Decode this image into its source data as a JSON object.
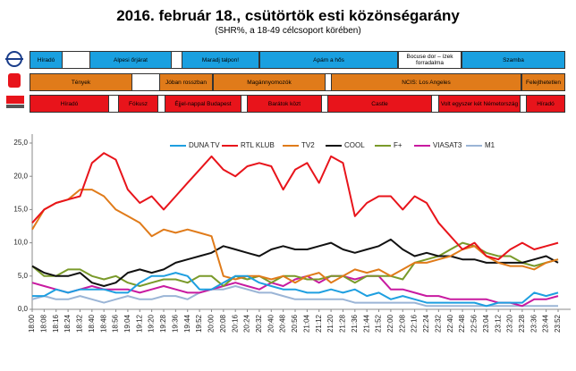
{
  "chart_data": {
    "type": "line",
    "title": "2016. február 18., csütörtök esti közönségarány",
    "subtitle": "(SHR%, a 18-49 célcsoport körében)",
    "categories": [
      "18:00",
      "18:08",
      "18:16",
      "18:24",
      "18:32",
      "18:40",
      "18:48",
      "18:56",
      "19:04",
      "19:12",
      "19:20",
      "19:28",
      "19:36",
      "19:44",
      "19:52",
      "20:00",
      "20:08",
      "20:16",
      "20:24",
      "20:32",
      "20:40",
      "20:48",
      "20:56",
      "21:04",
      "21:12",
      "21:20",
      "21:28",
      "21:36",
      "21:44",
      "21:52",
      "22:00",
      "22:08",
      "22:16",
      "22:24",
      "22:32",
      "22:40",
      "22:48",
      "22:56",
      "23:04",
      "23:12",
      "23:20",
      "23:28",
      "23:36",
      "23:44",
      "23:52"
    ],
    "ylim": [
      0,
      25
    ],
    "yticks": [
      {
        "value": 0,
        "label": "0,0"
      },
      {
        "value": 5,
        "label": "5,0"
      },
      {
        "value": 10,
        "label": "10,0"
      },
      {
        "value": 15,
        "label": "15,0"
      },
      {
        "value": 20,
        "label": "20,0"
      },
      {
        "value": 25,
        "label": "25,0"
      }
    ],
    "grid": false,
    "legend": "top",
    "series": [
      {
        "name": "DUNA TV",
        "color": "#1e9fe0",
        "values": [
          2,
          2,
          3,
          2.5,
          3,
          3,
          3,
          2.5,
          2.5,
          4,
          5,
          5,
          5.5,
          5,
          3,
          3,
          4,
          5,
          5,
          4,
          3.5,
          3,
          3,
          2.5,
          2.5,
          3,
          2.5,
          3,
          2,
          2.5,
          1.5,
          2,
          1.5,
          1,
          1,
          1,
          1,
          1,
          0.5,
          1,
          1,
          1,
          2.5,
          2,
          2.5
        ]
      },
      {
        "name": "RTL KLUB",
        "color": "#e8141b",
        "values": [
          13,
          15,
          16,
          16.5,
          17,
          22,
          23.5,
          22.5,
          18,
          16,
          17,
          15,
          17,
          19,
          21,
          23,
          21,
          20,
          21.5,
          22,
          21.5,
          18,
          21,
          22,
          19,
          23,
          22,
          14,
          16,
          17,
          17,
          15,
          17,
          16,
          13,
          11,
          9,
          10,
          8,
          7.5,
          9,
          10,
          9,
          9.5,
          10
        ]
      },
      {
        "name": "TV2",
        "color": "#e07b1a",
        "values": [
          12,
          15,
          16,
          16.5,
          18,
          18,
          17,
          15,
          14,
          13,
          11,
          12,
          11.5,
          12,
          11.5,
          11,
          5,
          4.5,
          5,
          5,
          4.5,
          5,
          4,
          5,
          5.5,
          4,
          5,
          6,
          5.5,
          6,
          5,
          6,
          7,
          7,
          7.5,
          8,
          9,
          9.5,
          8,
          7,
          6.5,
          6.5,
          6,
          7,
          7.5
        ]
      },
      {
        "name": "COOL",
        "color": "#111111",
        "values": [
          6.5,
          5.5,
          5,
          5,
          5.5,
          4,
          3.5,
          4,
          5.5,
          6,
          5.5,
          6,
          7,
          7.5,
          8,
          8.5,
          9.5,
          9,
          8.5,
          8,
          9,
          9.5,
          9,
          9,
          9.5,
          10,
          9,
          8.5,
          9,
          9.5,
          10.5,
          9,
          8,
          8.5,
          8,
          8,
          7.5,
          7.5,
          7,
          7,
          7,
          7,
          7.5,
          8,
          7
        ]
      },
      {
        "name": "F+",
        "color": "#7a9a2a",
        "values": [
          6.5,
          5,
          5,
          6,
          6,
          5,
          4.5,
          5,
          4,
          3.5,
          4,
          4.5,
          4.5,
          4,
          5,
          5,
          3.5,
          5,
          4.5,
          5,
          4,
          5,
          5,
          4.5,
          4.5,
          5,
          5,
          4,
          5,
          5,
          5,
          4.5,
          7,
          7.5,
          8,
          9,
          10,
          9.5,
          8.5,
          8,
          8,
          7,
          6.5,
          7,
          7.5
        ]
      },
      {
        "name": "VIASAT3",
        "color": "#c81aa0",
        "values": [
          4,
          3.5,
          3,
          2.5,
          3,
          3.5,
          3,
          3,
          3,
          2.5,
          3,
          3.5,
          3,
          2.5,
          2.5,
          3,
          3.5,
          4,
          3.5,
          3,
          4,
          3.5,
          4.5,
          5,
          4,
          5,
          5,
          4.5,
          5,
          5,
          3,
          3,
          2.5,
          2,
          2,
          1.5,
          1.5,
          1.5,
          1.5,
          1,
          1,
          0.5,
          1.5,
          1.5,
          2
        ]
      },
      {
        "name": "M1",
        "color": "#9bb5d6",
        "values": [
          1.5,
          2,
          1.5,
          1.5,
          2,
          1.5,
          1,
          1.5,
          2,
          1.5,
          1.5,
          2,
          2,
          1.5,
          2.5,
          3,
          3,
          3.5,
          3,
          2.5,
          2.5,
          2,
          1.5,
          1.5,
          1.5,
          1.5,
          1.5,
          1,
          1,
          1,
          1,
          1,
          1,
          0.5,
          0.5,
          0.5,
          0.5,
          0.5,
          0.5,
          0.5,
          0.5,
          0.5,
          0.5,
          0.5,
          0.5
        ]
      }
    ]
  },
  "schedule": [
    {
      "color": "#1aa0e0",
      "programs": [
        "Híradó",
        "Alpesi őrjárat",
        "Maradj talpon!",
        "Apám a hős",
        "Bocuse dor – ízek forradalma",
        "Szamba"
      ]
    },
    {
      "color": "#e07b1a",
      "programs": [
        "Tények",
        "Jóban rosszban",
        "Magánnyomozók",
        "NCIS: Los Angeles",
        "Felejthetetlen"
      ]
    },
    {
      "color": "#e8141b",
      "programs": [
        "Híradó",
        "Fókusz",
        "Éjjel-nappal Budapest",
        "Barátok közt",
        "Castle",
        "Volt egyszer két Németország",
        "Híradó"
      ]
    }
  ]
}
